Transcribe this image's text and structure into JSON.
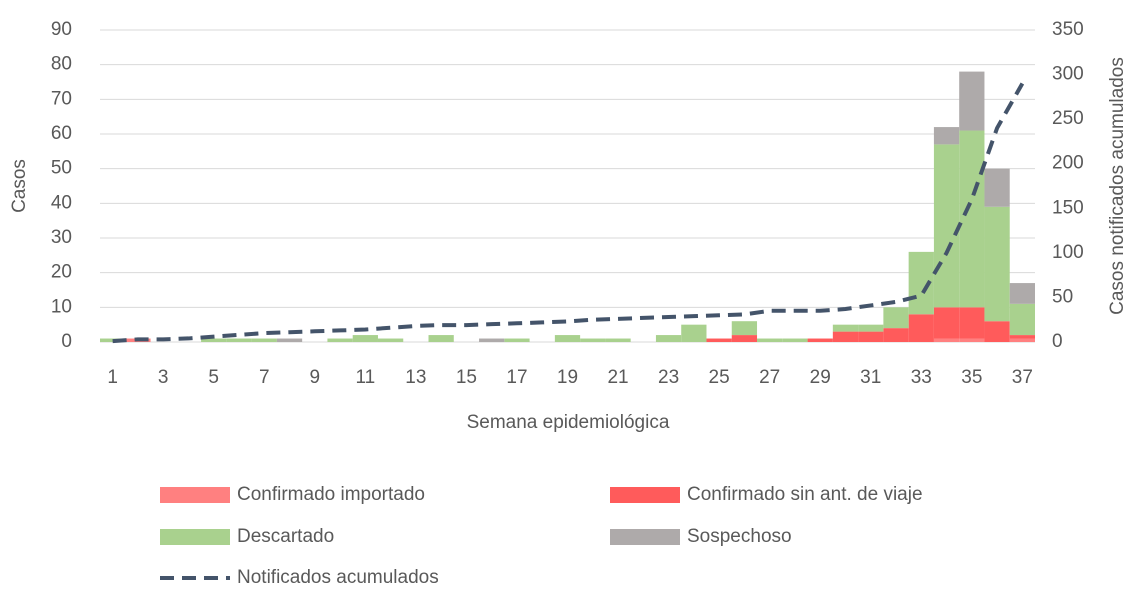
{
  "chart_data": {
    "type": "stacked_bar_line",
    "x_label": "Semana epidemiológica",
    "y_label": "Casos",
    "y2_label": "Casos notificados acumulados",
    "categories": [
      1,
      null,
      3,
      null,
      5,
      null,
      7,
      null,
      9,
      null,
      11,
      null,
      13,
      null,
      15,
      null,
      17,
      null,
      19,
      null,
      21,
      null,
      23,
      null,
      25,
      null,
      27,
      null,
      29,
      null,
      31,
      null,
      33,
      null,
      35,
      null,
      37
    ],
    "series": [
      {
        "name": "Confirmado importado",
        "color": "#ff8080",
        "values": [
          0,
          1,
          0,
          0,
          0,
          0,
          0,
          0,
          0,
          0,
          0,
          0,
          0,
          0,
          0,
          0,
          0,
          0,
          0,
          0,
          0,
          0,
          0,
          0,
          0,
          0,
          0,
          0,
          0,
          0,
          0,
          0,
          0,
          1,
          1,
          0,
          1
        ]
      },
      {
        "name": "Confirmado sin ant. de viaje",
        "color": "#ff5b5b",
        "values": [
          0,
          0,
          0,
          0,
          0,
          0,
          0,
          0,
          0,
          0,
          0,
          0,
          0,
          0,
          0,
          0,
          0,
          0,
          0,
          0,
          0,
          0,
          0,
          0,
          1,
          2,
          0,
          0,
          1,
          3,
          3,
          4,
          8,
          9,
          9,
          6,
          1
        ]
      },
      {
        "name": "Descartado",
        "color": "#a9d18e",
        "values": [
          1,
          0,
          0,
          0,
          1,
          1,
          1,
          0,
          0,
          1,
          2,
          1,
          0,
          2,
          0,
          0,
          1,
          0,
          2,
          1,
          1,
          0,
          2,
          5,
          0,
          4,
          1,
          1,
          0,
          2,
          2,
          6,
          18,
          47,
          51,
          33,
          9
        ]
      },
      {
        "name": "Sospechoso",
        "color": "#aeaaaa",
        "values": [
          0,
          0,
          0,
          0,
          0,
          0,
          0,
          1,
          0,
          0,
          0,
          0,
          0,
          0,
          0,
          1,
          0,
          0,
          0,
          0,
          0,
          0,
          0,
          0,
          0,
          0,
          0,
          0,
          0,
          0,
          0,
          0,
          0,
          5,
          17,
          11,
          6
        ]
      },
      {
        "name": "Notificados acumulados",
        "color": "#44546a",
        "axis": "y2",
        "dashed": true,
        "values": [
          1,
          3,
          3,
          4,
          6,
          8,
          10,
          11,
          12,
          13,
          14,
          16,
          18,
          19,
          19,
          20,
          21,
          22,
          23,
          25,
          26,
          27,
          28,
          29,
          30,
          31,
          35,
          35,
          35,
          37,
          41,
          45,
          52,
          100,
          160,
          240,
          290
        ]
      }
    ],
    "ylim": [
      0,
      90
    ],
    "yticks": [
      0,
      10,
      20,
      30,
      40,
      50,
      60,
      70,
      80,
      90
    ],
    "y2lim": [
      0,
      350
    ],
    "y2ticks": [
      0,
      50,
      100,
      150,
      200,
      250,
      300,
      350
    ],
    "grid": true,
    "legend": "bottom"
  }
}
